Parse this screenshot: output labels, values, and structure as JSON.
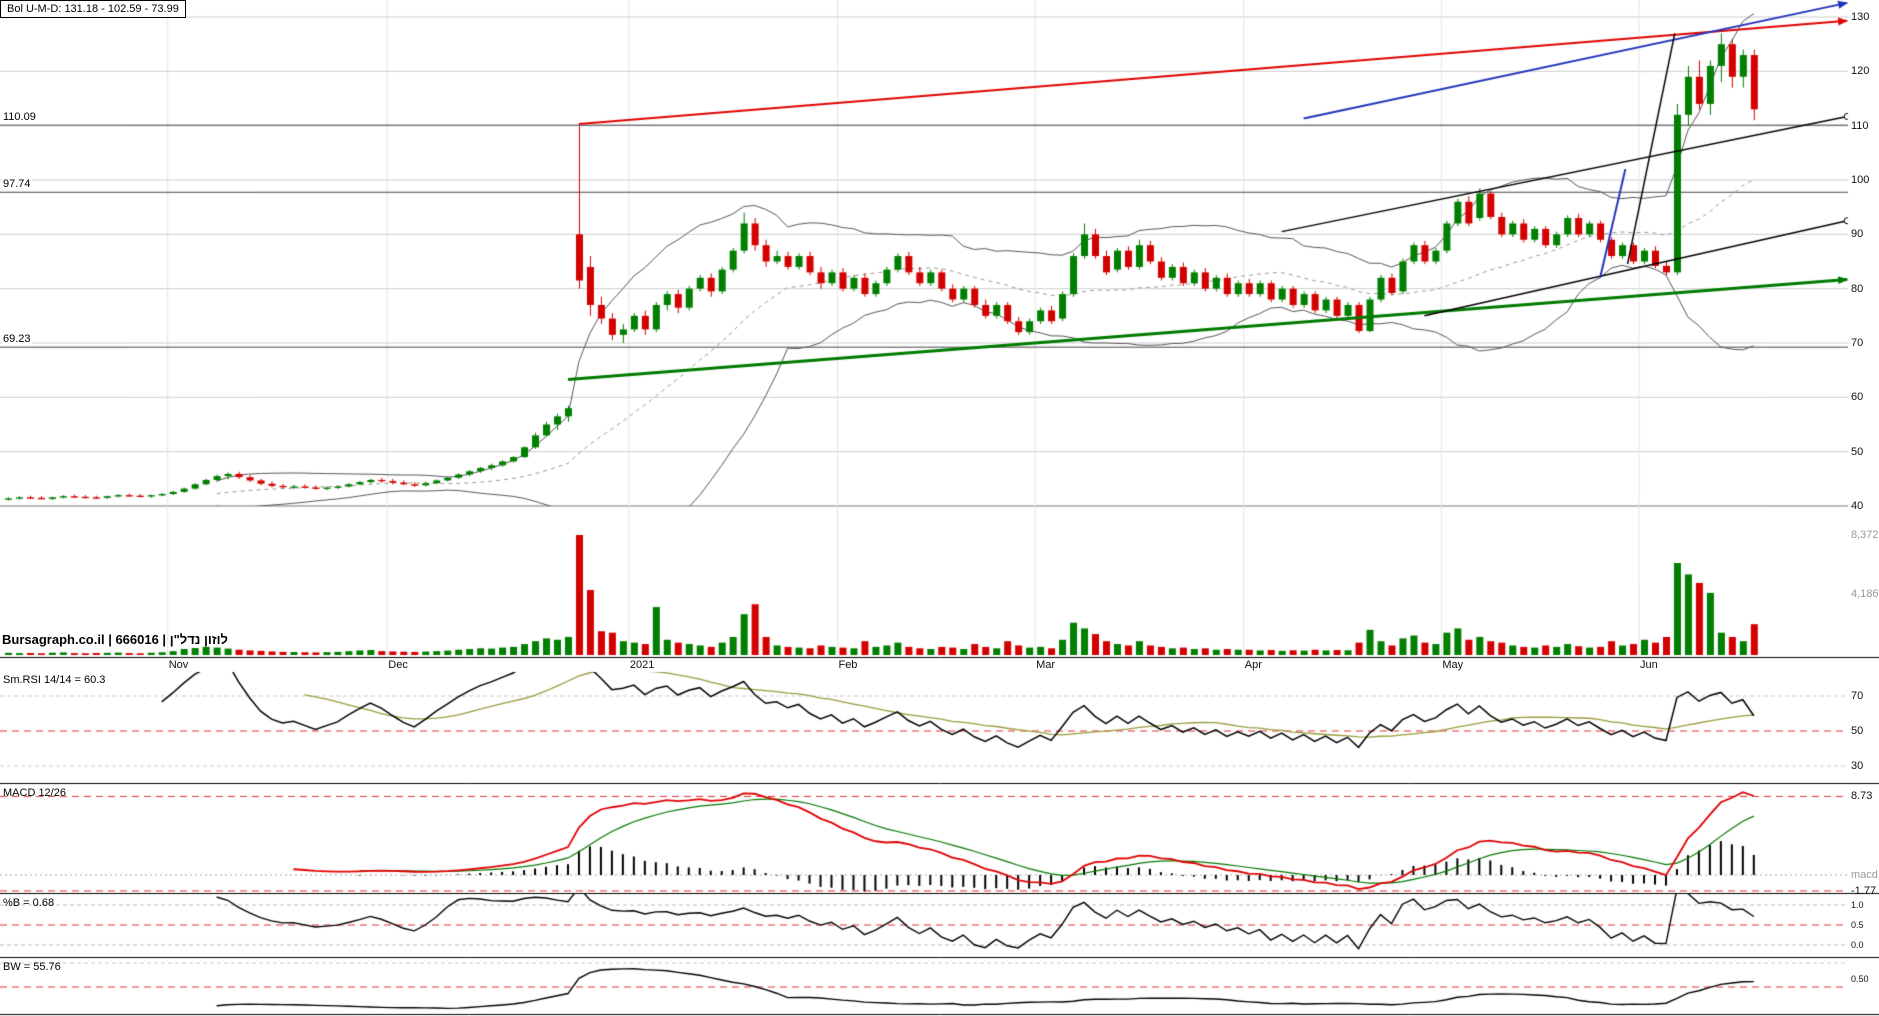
{
  "header": {
    "title": "Bol U-M-D: 131.18 - 102.59 - 73.99"
  },
  "branding": {
    "text": "Bursagraph.co.il | 666016 | לוזון נדל\"ן"
  },
  "levels": [
    {
      "label": "110.09",
      "value": 110.09
    },
    {
      "label": "97.74",
      "value": 97.74
    },
    {
      "label": "69.23",
      "value": 69.23
    }
  ],
  "colors": {
    "up": "#007f00",
    "down": "#d40000",
    "band": "#555555",
    "band_mid": "#999999",
    "red": "#e00000",
    "green": "#007a00",
    "blue": "#2233bb",
    "black": "#000000",
    "rsi_line": "#000000",
    "rsi_smooth": "#9b9b3c",
    "macd_line": "#e00000",
    "signal_line": "#007a00",
    "dashed_red": "#e03030"
  },
  "chart_data": {
    "type": "candlestick",
    "symbol": "666016",
    "name": "לוזון נדל\"ן",
    "price_axis": {
      "range": [
        40,
        130
      ],
      "ticks": [
        130,
        120,
        110,
        100,
        90,
        80,
        70,
        60,
        50,
        40
      ]
    },
    "level_lines": [
      110.09,
      97.74,
      69.23
    ],
    "x_axis_months": [
      {
        "label": "Nov",
        "index": 15
      },
      {
        "label": "Dec",
        "index": 35
      },
      {
        "label": "2021",
        "index": 57
      },
      {
        "label": "Feb",
        "index": 76
      },
      {
        "label": "Mar",
        "index": 94
      },
      {
        "label": "Apr",
        "index": 113
      },
      {
        "label": "May",
        "index": 131
      },
      {
        "label": "Jun",
        "index": 149
      }
    ],
    "volume_axis_ticks": [
      {
        "label": "8,372",
        "value": 8372
      },
      {
        "label": "4,186",
        "value": 4186
      }
    ],
    "indicators": {
      "bollinger": {
        "period": 20,
        "stdev": 2,
        "upper": 131.18,
        "middle": 102.59,
        "lower": 73.99
      },
      "rsi": {
        "label": "Sm.RSI 14/14 = 60.3",
        "period": 14,
        "smooth": 14,
        "value": 60.3,
        "ticks": [
          {
            "label": "70",
            "value": 70
          },
          {
            "label": "50",
            "value": 50
          },
          {
            "label": "30",
            "value": 30
          }
        ]
      },
      "macd": {
        "label": "MACD 12/26",
        "fast": 12,
        "slow": 26,
        "signal": 9,
        "ticks": [
          {
            "label": "8.73",
            "value": 8.73
          },
          {
            "label": "macd",
            "value": 0
          },
          {
            "label": "-1.77",
            "value": -1.77
          }
        ]
      },
      "percent_b": {
        "label": "%B = 0.68",
        "value": 0.68,
        "ticks": [
          {
            "label": "1.0",
            "value": 1
          },
          {
            "label": "0.5",
            "value": 0.5
          },
          {
            "label": "0.0",
            "value": 0
          }
        ]
      },
      "bandwidth": {
        "label": "BW = 55.76",
        "value": 55.76,
        "ticks": [
          {
            "label": "0.50",
            "value": 0.5
          }
        ]
      }
    },
    "trendlines": [
      {
        "color": "red",
        "i1": 52,
        "p1": 110.3,
        "i2": 167.5,
        "p2": 129.3,
        "width": 2,
        "end": "arrow"
      },
      {
        "color": "blue",
        "i1": 118,
        "p1": 111.3,
        "i2": 167.5,
        "p2": 132.6,
        "width": 2,
        "end": "arrow"
      },
      {
        "color": "green",
        "i1": 51,
        "p1": 63.3,
        "i2": 167.5,
        "p2": 81.7,
        "width": 3,
        "end": "arrow"
      },
      {
        "color": "black",
        "i1": 116,
        "p1": 90.5,
        "i2": 167.5,
        "p2": 111.7,
        "width": 1.5,
        "end": "circle"
      },
      {
        "color": "black",
        "i1": 129,
        "p1": 75.0,
        "i2": 167.5,
        "p2": 92.5,
        "width": 1.5,
        "end": "circle"
      },
      {
        "color": "black",
        "i1": 147.5,
        "p1": 84.5,
        "i2": 151.8,
        "p2": 127.0,
        "width": 1.5,
        "end": "none"
      },
      {
        "color": "blue",
        "i1": 145,
        "p1": 82.0,
        "i2": 147.3,
        "p2": 102.0,
        "width": 2,
        "end": "none"
      }
    ],
    "candles": [
      [
        41.2,
        41.6,
        41.0,
        41.4,
        80
      ],
      [
        41.4,
        41.8,
        41.2,
        41.6,
        60
      ],
      [
        41.6,
        41.9,
        41.3,
        41.5,
        70
      ],
      [
        41.5,
        41.8,
        41.2,
        41.3,
        50
      ],
      [
        41.3,
        41.7,
        41.1,
        41.6,
        90
      ],
      [
        41.6,
        42.0,
        41.4,
        41.8,
        110
      ],
      [
        41.8,
        42.1,
        41.5,
        41.7,
        60
      ],
      [
        41.7,
        42.0,
        41.4,
        41.6,
        50
      ],
      [
        41.6,
        41.9,
        41.3,
        41.5,
        70
      ],
      [
        41.5,
        41.9,
        41.3,
        41.8,
        80
      ],
      [
        41.8,
        42.2,
        41.6,
        42.0,
        100
      ],
      [
        42.0,
        42.3,
        41.7,
        41.9,
        60
      ],
      [
        41.9,
        42.2,
        41.6,
        41.8,
        50
      ],
      [
        41.8,
        42.1,
        41.5,
        42.0,
        90
      ],
      [
        42.0,
        42.4,
        41.8,
        42.2,
        120
      ],
      [
        42.2,
        42.8,
        42.0,
        42.6,
        200
      ],
      [
        42.6,
        43.4,
        42.4,
        43.2,
        350
      ],
      [
        43.2,
        44.2,
        43.0,
        44.0,
        420
      ],
      [
        44.0,
        45.0,
        43.8,
        44.8,
        500
      ],
      [
        44.8,
        45.8,
        44.5,
        45.5,
        450
      ],
      [
        45.5,
        46.2,
        44.9,
        45.9,
        380
      ],
      [
        45.9,
        46.3,
        45.0,
        45.3,
        300
      ],
      [
        45.3,
        45.7,
        44.4,
        44.7,
        250
      ],
      [
        44.7,
        45.0,
        43.8,
        44.1,
        220
      ],
      [
        44.1,
        44.5,
        43.4,
        43.7,
        180
      ],
      [
        43.7,
        44.1,
        43.2,
        43.5,
        150
      ],
      [
        43.5,
        43.9,
        43.1,
        43.6,
        140
      ],
      [
        43.6,
        44.0,
        43.2,
        43.4,
        120
      ],
      [
        43.4,
        43.8,
        43.0,
        43.2,
        110
      ],
      [
        43.2,
        43.6,
        42.9,
        43.4,
        130
      ],
      [
        43.4,
        43.8,
        43.1,
        43.6,
        150
      ],
      [
        43.6,
        44.2,
        43.4,
        44.0,
        200
      ],
      [
        44.0,
        44.6,
        43.8,
        44.4,
        250
      ],
      [
        44.4,
        45.0,
        44.1,
        44.8,
        280
      ],
      [
        44.8,
        45.2,
        44.3,
        44.6,
        200
      ],
      [
        44.6,
        45.0,
        44.0,
        44.3,
        180
      ],
      [
        44.3,
        44.7,
        43.8,
        44.0,
        160
      ],
      [
        44.0,
        44.4,
        43.5,
        43.8,
        150
      ],
      [
        43.8,
        44.5,
        43.6,
        44.2,
        170
      ],
      [
        44.2,
        44.9,
        44.0,
        44.7,
        200
      ],
      [
        44.7,
        45.4,
        44.5,
        45.2,
        240
      ],
      [
        45.2,
        46.0,
        45.0,
        45.8,
        300
      ],
      [
        45.8,
        46.6,
        45.5,
        46.4,
        350
      ],
      [
        46.4,
        47.2,
        46.1,
        47.0,
        400
      ],
      [
        47.0,
        47.8,
        46.6,
        47.5,
        380
      ],
      [
        47.5,
        48.4,
        47.2,
        48.2,
        450
      ],
      [
        48.2,
        49.2,
        48.0,
        49.0,
        500
      ],
      [
        49.0,
        51.0,
        48.8,
        50.8,
        700
      ],
      [
        50.8,
        53.5,
        50.5,
        53.0,
        900
      ],
      [
        53.0,
        55.5,
        52.8,
        55.0,
        1100
      ],
      [
        55.0,
        57.0,
        54.0,
        56.5,
        1000
      ],
      [
        56.5,
        58.5,
        55.5,
        58.0,
        1200
      ],
      [
        90.0,
        110.0,
        80.0,
        81.5,
        8372
      ],
      [
        84.0,
        86.0,
        75.0,
        77.0,
        4500
      ],
      [
        77.0,
        78.5,
        73.5,
        74.5,
        1600
      ],
      [
        74.5,
        75.5,
        70.5,
        71.5,
        1500
      ],
      [
        71.5,
        73.5,
        70.0,
        72.5,
        900
      ],
      [
        72.5,
        75.5,
        72.0,
        75.0,
        800
      ],
      [
        75.0,
        76.0,
        71.5,
        72.5,
        700
      ],
      [
        72.5,
        77.5,
        72.0,
        77.0,
        3300
      ],
      [
        77.0,
        79.5,
        76.0,
        79.0,
        1000
      ],
      [
        79.0,
        79.8,
        75.5,
        76.5,
        800
      ],
      [
        76.5,
        80.5,
        76.0,
        80.0,
        700
      ],
      [
        80.0,
        82.5,
        79.5,
        82.0,
        600
      ],
      [
        82.0,
        82.8,
        78.5,
        79.5,
        500
      ],
      [
        79.5,
        84.0,
        79.0,
        83.5,
        800
      ],
      [
        83.5,
        87.5,
        83.0,
        87.0,
        1200
      ],
      [
        87.0,
        94.0,
        86.5,
        92.0,
        2800
      ],
      [
        92.0,
        93.0,
        87.0,
        88.0,
        3500
      ],
      [
        88.0,
        89.0,
        84.0,
        85.0,
        1200
      ],
      [
        85.0,
        87.0,
        84.5,
        86.0,
        600
      ],
      [
        86.0,
        86.8,
        83.5,
        84.0,
        500
      ],
      [
        84.0,
        86.5,
        83.5,
        86.0,
        450
      ],
      [
        86.0,
        86.8,
        82.5,
        83.0,
        400
      ],
      [
        83.0,
        84.0,
        80.0,
        81.0,
        600
      ],
      [
        81.0,
        83.5,
        80.5,
        83.0,
        500
      ],
      [
        83.0,
        83.8,
        79.5,
        80.0,
        450
      ],
      [
        80.0,
        82.5,
        79.5,
        82.0,
        400
      ],
      [
        82.0,
        82.8,
        78.5,
        79.0,
        900
      ],
      [
        79.0,
        81.5,
        78.5,
        81.0,
        500
      ],
      [
        81.0,
        84.0,
        80.5,
        83.5,
        600
      ],
      [
        83.5,
        86.5,
        83.0,
        86.0,
        800
      ],
      [
        86.0,
        86.8,
        82.5,
        83.0,
        500
      ],
      [
        83.0,
        84.0,
        80.5,
        81.0,
        400
      ],
      [
        81.0,
        83.5,
        80.5,
        83.0,
        350
      ],
      [
        83.0,
        83.5,
        79.5,
        80.0,
        500
      ],
      [
        80.0,
        80.8,
        77.5,
        78.0,
        450
      ],
      [
        78.0,
        80.5,
        77.5,
        80.0,
        350
      ],
      [
        80.0,
        80.5,
        76.5,
        77.0,
        700
      ],
      [
        77.0,
        78.0,
        74.5,
        75.0,
        500
      ],
      [
        75.0,
        77.5,
        74.5,
        77.0,
        400
      ],
      [
        77.0,
        77.5,
        73.5,
        74.0,
        900
      ],
      [
        74.0,
        74.8,
        71.5,
        72.0,
        600
      ],
      [
        72.0,
        74.5,
        71.5,
        74.0,
        450
      ],
      [
        74.0,
        76.5,
        73.5,
        76.0,
        500
      ],
      [
        76.0,
        76.8,
        73.5,
        74.0,
        400
      ],
      [
        74.5,
        79.5,
        74.0,
        79.0,
        1000
      ],
      [
        79.0,
        86.5,
        78.5,
        86.0,
        2200
      ],
      [
        86.0,
        92.0,
        85.5,
        90.0,
        1800
      ],
      [
        90.0,
        91.0,
        85.5,
        86.0,
        1400
      ],
      [
        86.0,
        87.0,
        82.5,
        83.0,
        900
      ],
      [
        83.5,
        87.5,
        83.0,
        87.0,
        700
      ],
      [
        87.0,
        87.8,
        83.5,
        84.0,
        600
      ],
      [
        84.0,
        89.0,
        83.5,
        88.0,
        900
      ],
      [
        88.0,
        88.8,
        84.5,
        85.0,
        600
      ],
      [
        85.0,
        85.8,
        81.5,
        82.0,
        500
      ],
      [
        82.0,
        84.5,
        81.5,
        84.0,
        400
      ],
      [
        84.0,
        84.8,
        80.5,
        81.0,
        450
      ],
      [
        81.0,
        83.5,
        80.5,
        83.0,
        350
      ],
      [
        83.0,
        83.8,
        79.5,
        80.0,
        400
      ],
      [
        80.0,
        82.5,
        79.5,
        82.0,
        300
      ],
      [
        82.0,
        82.8,
        78.5,
        79.0,
        350
      ],
      [
        79.0,
        81.5,
        78.5,
        81.0,
        300
      ],
      [
        81.0,
        81.8,
        78.5,
        79.0,
        300
      ],
      [
        79.0,
        81.5,
        78.5,
        81.0,
        250
      ],
      [
        81.0,
        81.5,
        77.5,
        78.0,
        280
      ],
      [
        78.0,
        80.5,
        77.5,
        80.0,
        220
      ],
      [
        80.0,
        80.5,
        76.5,
        77.0,
        260
      ],
      [
        77.0,
        79.5,
        76.5,
        79.0,
        240
      ],
      [
        79.0,
        79.5,
        75.5,
        76.0,
        300
      ],
      [
        76.0,
        78.5,
        75.5,
        78.0,
        250
      ],
      [
        78.0,
        78.5,
        74.5,
        75.0,
        280
      ],
      [
        75.0,
        77.5,
        74.5,
        77.0,
        260
      ],
      [
        77.0,
        77.5,
        71.8,
        72.2,
        800
      ],
      [
        72.2,
        78.5,
        72.0,
        78.0,
        1700
      ],
      [
        78.0,
        82.5,
        77.5,
        82.0,
        900
      ],
      [
        82.0,
        82.8,
        78.8,
        79.2,
        600
      ],
      [
        79.5,
        85.5,
        79.0,
        85.0,
        1100
      ],
      [
        85.0,
        88.5,
        84.5,
        88.0,
        1300
      ],
      [
        88.0,
        88.8,
        84.5,
        85.0,
        800
      ],
      [
        85.0,
        87.5,
        84.5,
        87.0,
        700
      ],
      [
        87.0,
        92.5,
        86.5,
        92.0,
        1500
      ],
      [
        92.0,
        96.5,
        91.5,
        96.0,
        1800
      ],
      [
        96.0,
        97.0,
        91.5,
        92.0,
        1000
      ],
      [
        93.0,
        98.5,
        92.5,
        97.5,
        1200
      ],
      [
        97.5,
        98.0,
        92.8,
        93.2,
        900
      ],
      [
        93.2,
        94.0,
        89.5,
        90.0,
        800
      ],
      [
        90.0,
        92.5,
        89.5,
        92.0,
        600
      ],
      [
        92.0,
        92.8,
        88.5,
        89.0,
        500
      ],
      [
        89.0,
        91.5,
        88.5,
        91.0,
        450
      ],
      [
        91.0,
        91.5,
        87.5,
        88.0,
        600
      ],
      [
        88.0,
        90.5,
        87.5,
        90.0,
        500
      ],
      [
        90.0,
        93.5,
        89.5,
        93.0,
        700
      ],
      [
        93.0,
        93.8,
        89.5,
        90.0,
        550
      ],
      [
        90.0,
        92.5,
        89.5,
        92.0,
        450
      ],
      [
        92.0,
        92.5,
        88.5,
        89.0,
        500
      ],
      [
        89.0,
        89.5,
        85.5,
        86.0,
        900
      ],
      [
        86.0,
        88.5,
        85.5,
        88.0,
        600
      ],
      [
        88.0,
        88.5,
        84.5,
        85.0,
        700
      ],
      [
        85.0,
        87.5,
        84.5,
        87.0,
        1000
      ],
      [
        87.0,
        87.8,
        83.8,
        84.2,
        800
      ],
      [
        84.2,
        85.0,
        82.5,
        83.0,
        1200
      ],
      [
        83.0,
        114.0,
        82.5,
        112.0,
        6400
      ],
      [
        112.0,
        121.0,
        110.0,
        119.0,
        5600
      ],
      [
        119.0,
        122.0,
        113.0,
        114.0,
        5000
      ],
      [
        114.0,
        122.0,
        112.0,
        121.0,
        4300
      ],
      [
        121.0,
        127.0,
        118.0,
        125.0,
        1500
      ],
      [
        125.0,
        126.0,
        117.0,
        119.0,
        1200
      ],
      [
        119.0,
        124.0,
        117.0,
        123.0,
        900
      ],
      [
        123.0,
        124.0,
        111.0,
        113.0,
        2100
      ]
    ]
  }
}
